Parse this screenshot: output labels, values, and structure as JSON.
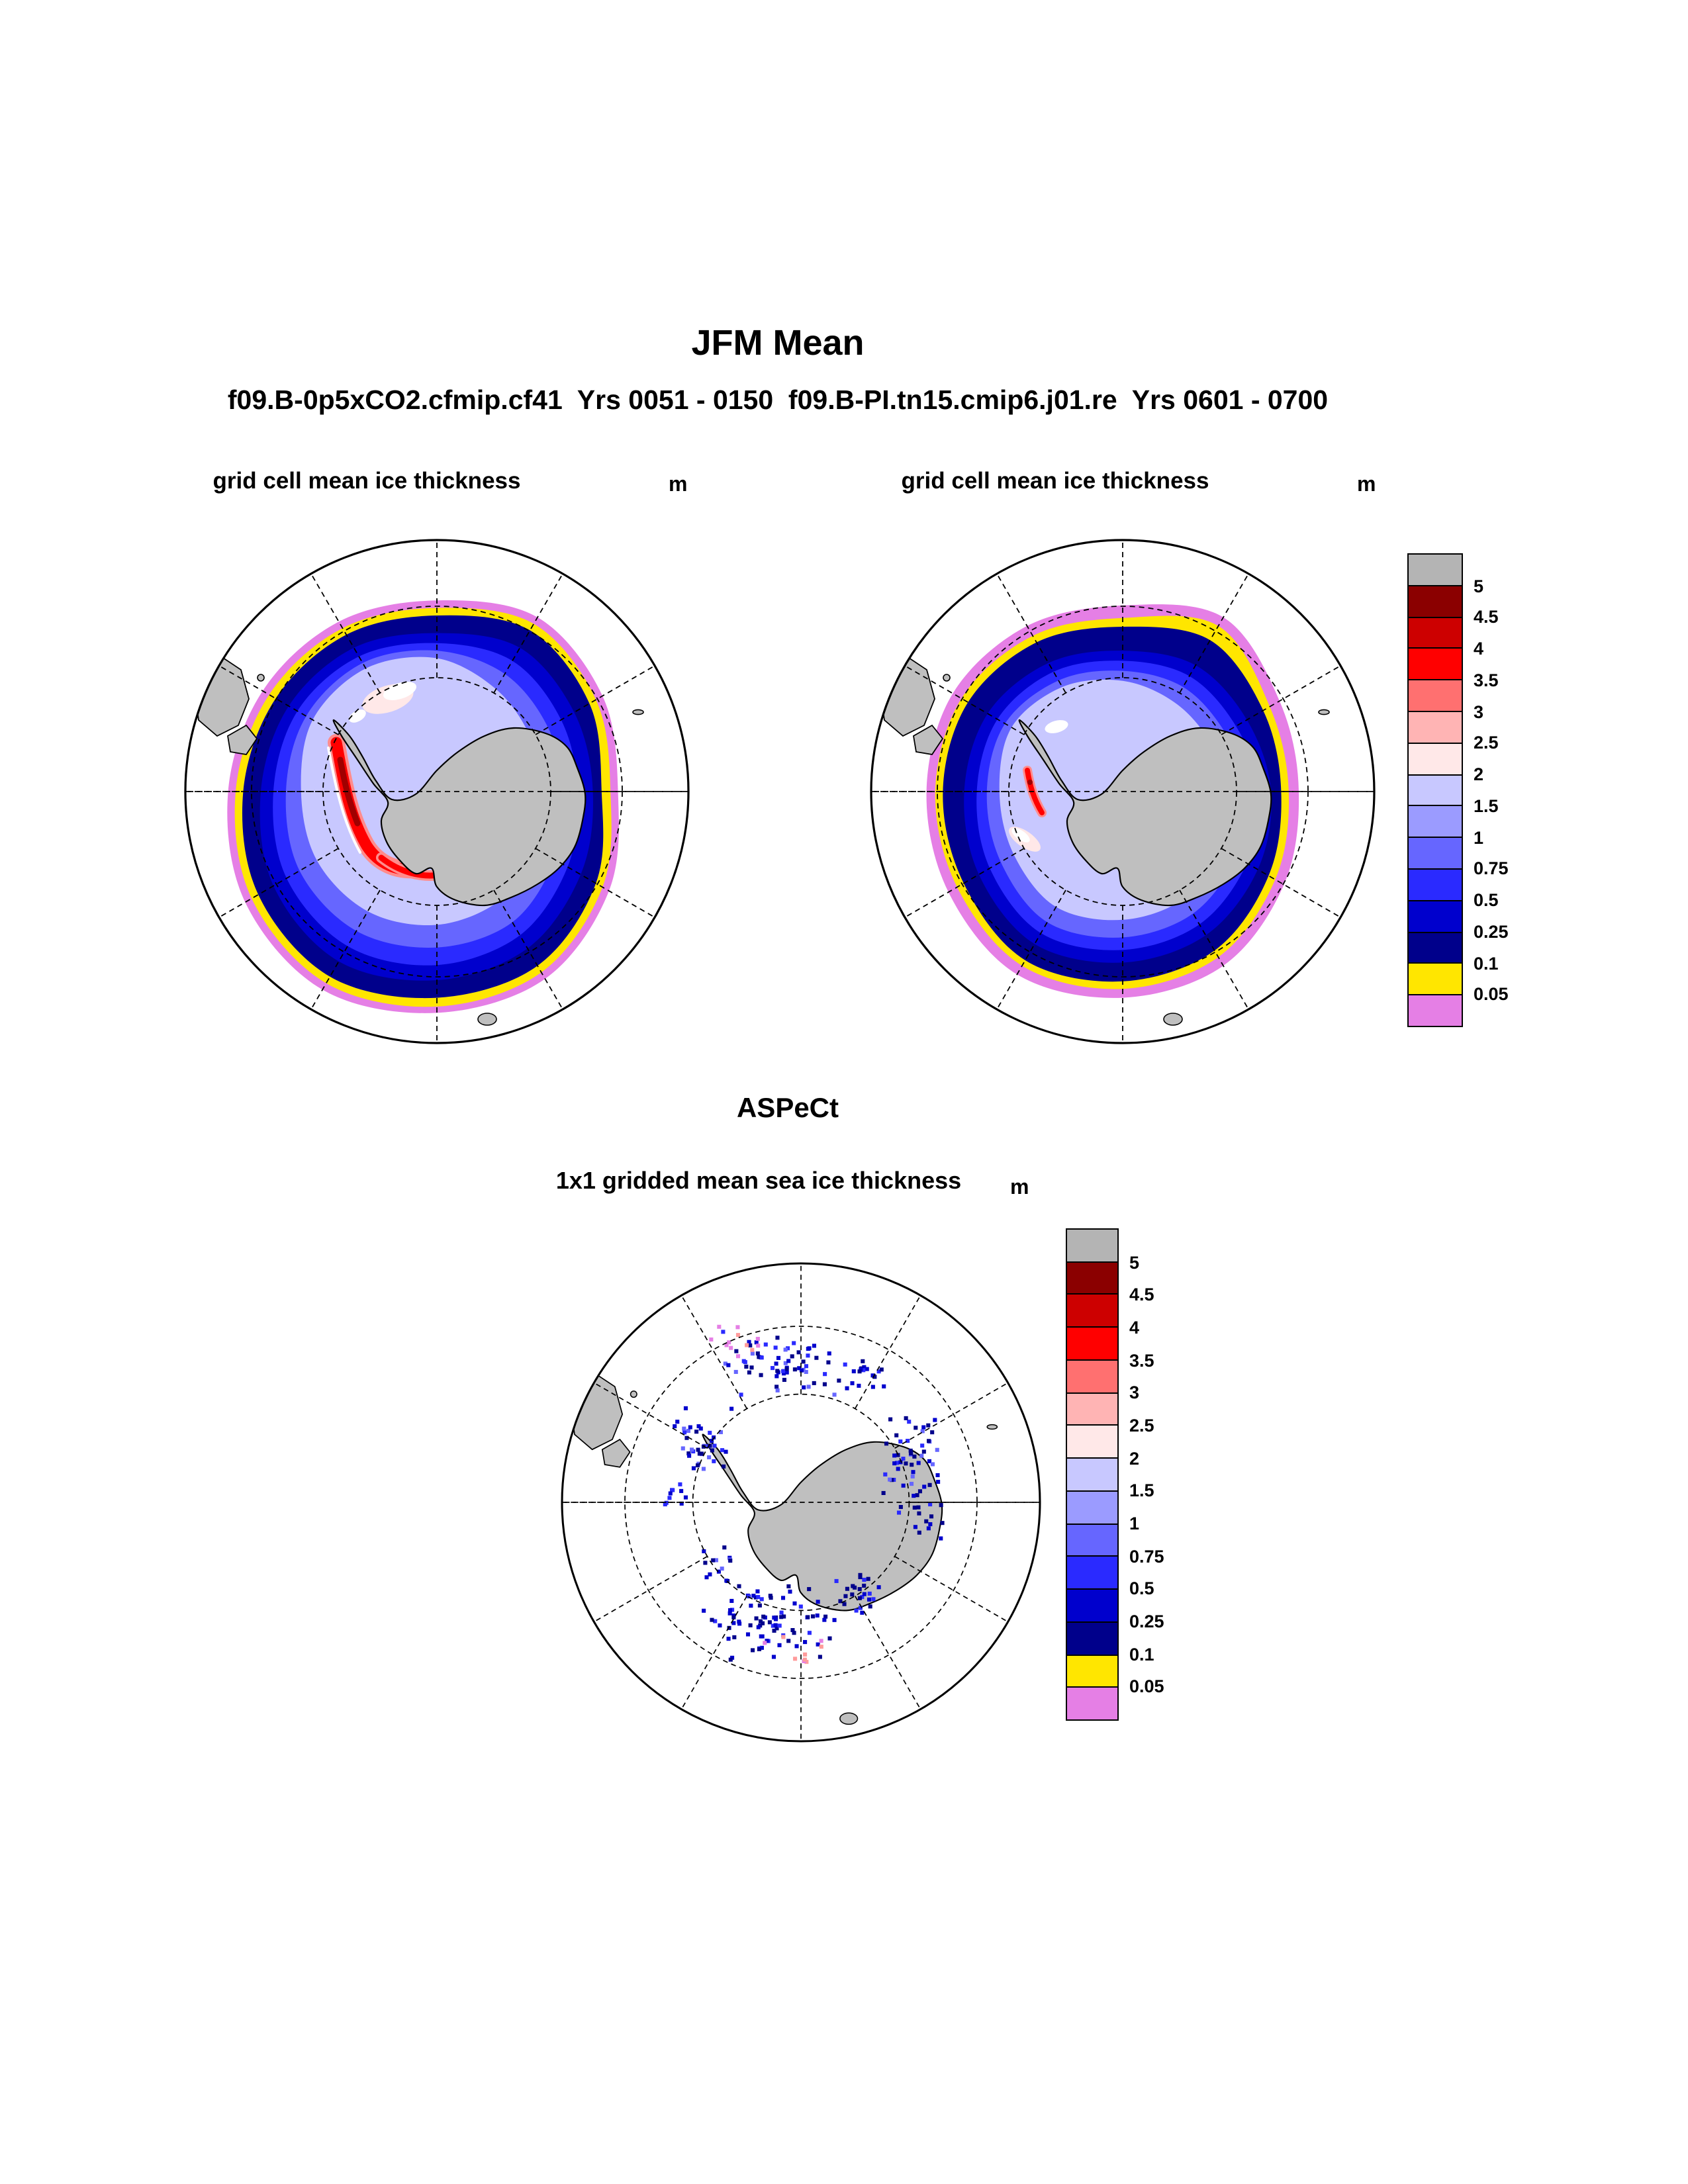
{
  "header": {
    "title": "JFM Mean",
    "subtitle": "f09.B-0p5xCO2.cfmip.cf41  Yrs 0051 - 0150  f09.B-PI.tn15.cmip6.j01.re  Yrs 0601 - 0700"
  },
  "panels": {
    "left": {
      "title": "grid cell mean ice thickness",
      "units": "m"
    },
    "right": {
      "title": "grid cell mean ice thickness",
      "units": "m"
    },
    "aspect": {
      "section_title": "ASPeCt",
      "title": "1x1 gridded mean sea ice thickness",
      "units": "m"
    }
  },
  "colorbar": {
    "labels": [
      "5",
      "4.5",
      "4",
      "3.5",
      "3",
      "2.5",
      "2",
      "1.5",
      "1",
      "0.75",
      "0.5",
      "0.25",
      "0.1",
      "0.05"
    ],
    "colors": [
      "#b4b4b4",
      "#8b0000",
      "#cd0000",
      "#ff0000",
      "#ff7070",
      "#ffb4b4",
      "#ffe8e8",
      "#c8c8ff",
      "#9b9bff",
      "#6666ff",
      "#2a2aff",
      "#0000cd",
      "#00008b",
      "#ffe600",
      "#e57fe5"
    ]
  },
  "map_colors": {
    "land": "#bfbfbf",
    "ocean": "#ffffff",
    "navy_thin_ice": "#00008b",
    "yellow_fringe": "#ffe600",
    "magenta_fringe": "#e57fe5",
    "thick_ice_red": "#ff0000"
  },
  "chart_data": {
    "type": "heatmap",
    "title": "JFM Mean",
    "subtitle": "f09.B-0p5xCO2.cfmip.cf41  Yrs 0051 - 0150  f09.B-PI.tn15.cmip6.j01.re  Yrs 0601 - 0700",
    "variable": "sea ice thickness",
    "units": "m",
    "projection": "south polar stereographic (Antarctica)",
    "levels": [
      0.05,
      0.1,
      0.25,
      0.5,
      0.75,
      1,
      1.5,
      2,
      2.5,
      3,
      3.5,
      4,
      4.5,
      5
    ],
    "level_colors_low_to_high": [
      "#e57fe5",
      "#ffe600",
      "#00008b",
      "#0000cd",
      "#2a2aff",
      "#6666ff",
      "#9b9bff",
      "#c8c8ff",
      "#ffe8e8",
      "#ffb4b4",
      "#ff7070",
      "#ff0000",
      "#cd0000",
      "#8b0000",
      "#b4b4b4"
    ],
    "legend_position": "right",
    "grid": "dashed graticule, meridians every 30 deg, dashed latitude circles",
    "panels": [
      {
        "title": "grid cell mean ice thickness",
        "case": "f09.B-0p5xCO2.cfmip.cf41",
        "years": "0051 - 0150",
        "description": "Broad circumpolar sea-ice ring around Antarctica, mostly 0.1-0.75 m (navy/dark blue), 1-2 m (light blue/lavender, white patches) in the Weddell sector, 3.5-4.5 m (red with dark-red core) band along the west Antarctic Peninsula coast, yellow 0.05-0.1 m fringe and magenta <0.05 m outermost fringe"
      },
      {
        "title": "grid cell mean ice thickness",
        "case": "f09.B-PI.tn15.cmip6.j01.re",
        "years": "0601 - 0700",
        "description": "Narrower, thinner circumpolar ice ring, mostly 0.1-0.5 m, small 1.5-2 m light patch in Weddell sector, tiny 3.5-4 m red spot near the Antarctic Peninsula, thick yellow fringe at the top-right edge, magenta outer fringe"
      },
      {
        "title": "1x1 gridded mean sea ice thickness",
        "case": "ASPeCt",
        "description": "Sparse ship-based observations scattered in clusters around the Antarctic coast, mostly 0.1-1 m (navy to medium blue squares) with a few pink/magenta points north of the Peninsula and in the eastern sector"
      }
    ]
  }
}
